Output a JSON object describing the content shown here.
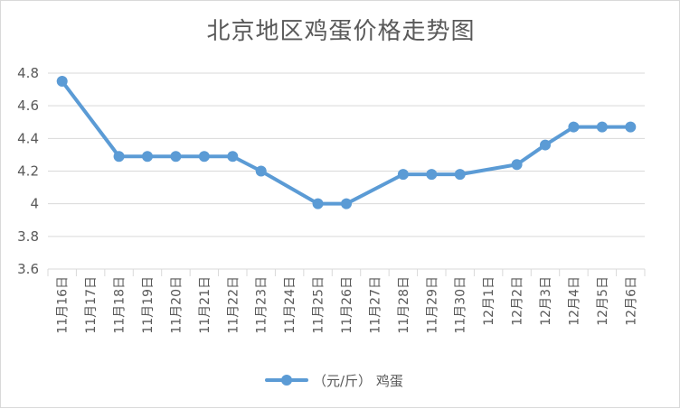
{
  "chart_data": {
    "type": "line",
    "title": "北京地区鸡蛋价格走势图",
    "categories": [
      "11月16日",
      "11月17日",
      "11月18日",
      "11月19日",
      "11月20日",
      "11月21日",
      "11月22日",
      "11月23日",
      "11月24日",
      "11月25日",
      "11月26日",
      "11月27日",
      "11月28日",
      "11月29日",
      "11月30日",
      "12月1日",
      "12月2日",
      "12月3日",
      "12月4日",
      "12月5日",
      "12月6日"
    ],
    "series": [
      {
        "name": "（元/斤） 鸡蛋",
        "values": [
          4.75,
          null,
          4.29,
          4.29,
          4.29,
          4.29,
          4.29,
          4.2,
          null,
          4.0,
          4.0,
          null,
          4.18,
          4.18,
          4.18,
          null,
          4.24,
          4.36,
          4.47,
          4.47,
          4.47
        ]
      }
    ],
    "ylim": [
      3.6,
      4.8
    ],
    "yticks": [
      "3.6",
      "3.8",
      "4",
      "4.2",
      "4.4",
      "4.6",
      "4.8"
    ],
    "grid": true,
    "legend": "bottom",
    "colors": {
      "line": "#5b9bd5",
      "grid": "#d9d9d9",
      "text": "#595959"
    }
  }
}
